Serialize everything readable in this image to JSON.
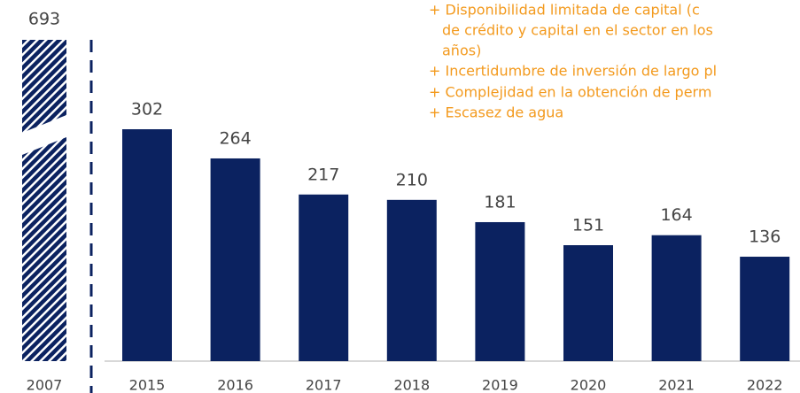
{
  "chart_data": {
    "type": "bar",
    "categories": [
      "2007",
      "2015",
      "2016",
      "2017",
      "2018",
      "2019",
      "2020",
      "2021",
      "2022"
    ],
    "values": [
      693,
      302,
      264,
      217,
      210,
      181,
      151,
      164,
      136
    ],
    "color": "#0b2260",
    "annotations": [
      "+ Disponibilidad limitada de capital (c",
      "de crédito y capital en el sector en los",
      "años)",
      "+ Incertidumbre de inversión de largo pl",
      "+ Complejidad en la obtención de perm",
      "+ Escasez de agua"
    ],
    "annotation_color": "#f39a1e"
  }
}
